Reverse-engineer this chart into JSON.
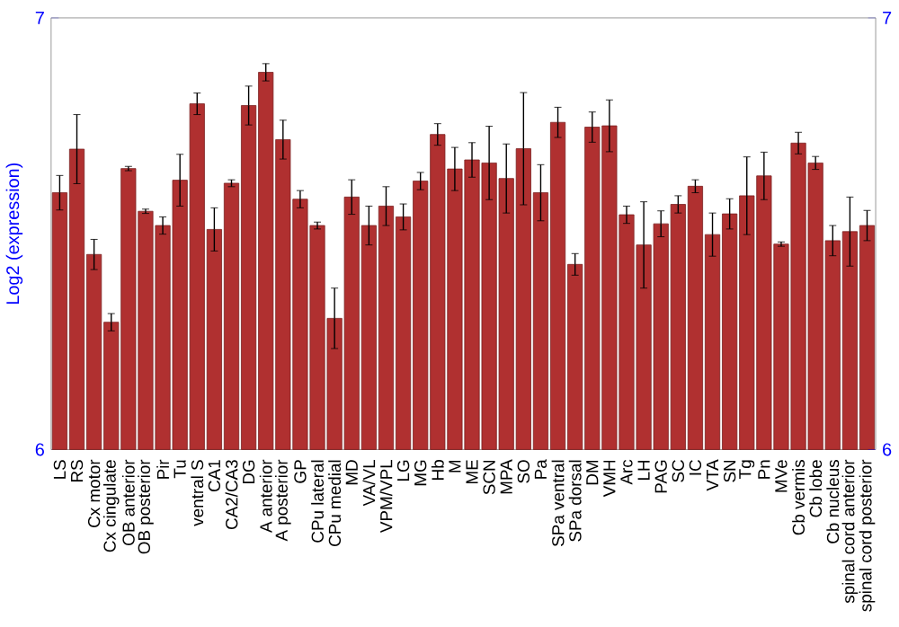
{
  "chart_data": {
    "type": "bar",
    "ylabel": "Log2 (expression)",
    "color": "#b03030",
    "categories": [
      "LS",
      "RS",
      "Cx motor",
      "Cx cingulate",
      "OB anterior",
      "OB posterior",
      "Pir",
      "Tu",
      "ventral S",
      "CA1",
      "CA2/CA3",
      "DG",
      "A anterior",
      "A posterior",
      "GP",
      "CPu lateral",
      "CPu medial",
      "MD",
      "VA/VL",
      "VPM/VPL",
      "LG",
      "MG",
      "Hb",
      "M",
      "ME",
      "SCN",
      "MPA",
      "SO",
      "Pa",
      "SPa ventral",
      "SPa dorsal",
      "DM",
      "VMH",
      "Arc",
      "LH",
      "PAG",
      "SC",
      "IC",
      "VTA",
      "SN",
      "Tg",
      "Pn",
      "MVe",
      "Cb vermis",
      "Cb lobe",
      "Cb nucleus",
      "spinal cord anterior",
      "spinal cord posterior"
    ],
    "values": [
      6.595,
      6.696,
      6.452,
      6.295,
      6.651,
      6.552,
      6.519,
      6.624,
      6.801,
      6.51,
      6.617,
      6.797,
      6.874,
      6.718,
      6.58,
      6.519,
      6.304,
      6.585,
      6.519,
      6.564,
      6.539,
      6.622,
      6.73,
      6.65,
      6.671,
      6.664,
      6.628,
      6.697,
      6.595,
      6.758,
      6.429,
      6.747,
      6.75,
      6.544,
      6.474,
      6.523,
      6.568,
      6.61,
      6.498,
      6.546,
      6.588,
      6.634,
      6.476,
      6.71,
      6.664,
      6.484,
      6.505,
      6.519
    ],
    "errors": [
      0.04,
      0.08,
      0.035,
      0.02,
      0.005,
      0.005,
      0.02,
      0.06,
      0.025,
      0.05,
      0.008,
      0.045,
      0.02,
      0.045,
      0.02,
      0.008,
      0.07,
      0.04,
      0.045,
      0.045,
      0.03,
      0.02,
      0.025,
      0.05,
      0.04,
      0.085,
      0.08,
      0.13,
      0.065,
      0.035,
      0.025,
      0.035,
      0.06,
      0.02,
      0.1,
      0.03,
      0.02,
      0.015,
      0.05,
      0.035,
      0.09,
      0.055,
      0.005,
      0.025,
      0.015,
      0.035,
      0.08,
      0.035
    ],
    "ylim": [
      6,
      7
    ],
    "yticks": [
      6,
      7
    ],
    "y2lim": [
      6,
      7
    ],
    "y2ticks": [
      6,
      7
    ]
  }
}
